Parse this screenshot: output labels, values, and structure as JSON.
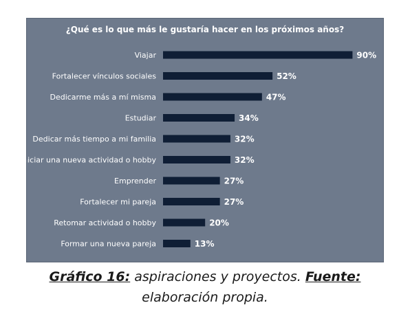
{
  "chart_data": {
    "type": "bar",
    "orientation": "horizontal",
    "title": "¿Qué es lo que más le gustaría hacer en los próximos años?",
    "categories": [
      "Viajar",
      "Fortalecer vínculos sociales",
      "Dedicarme más a mí misma",
      "Estudiar",
      "Dedicar más tiempo a mi familia",
      "Iniciar una nueva actividad o hobby",
      "Emprender",
      "Fortalecer mi pareja",
      "Retomar actividad o hobby",
      "Formar una nueva pareja"
    ],
    "values": [
      90,
      52,
      47,
      34,
      32,
      32,
      27,
      27,
      20,
      13
    ],
    "value_labels": [
      "90%",
      "52%",
      "47%",
      "34%",
      "32%",
      "32%",
      "27%",
      "27%",
      "20%",
      "13%"
    ],
    "xlim": [
      0,
      100
    ],
    "grid": false,
    "colors": {
      "bar": "#0f1e35",
      "background": "#6e7a8c",
      "text": "#ffffff"
    }
  },
  "caption": {
    "label": "Gráfico 16:",
    "text": " aspiraciones y proyectos. ",
    "source_label": "Fuente:",
    "source_text": "elaboración propia."
  }
}
